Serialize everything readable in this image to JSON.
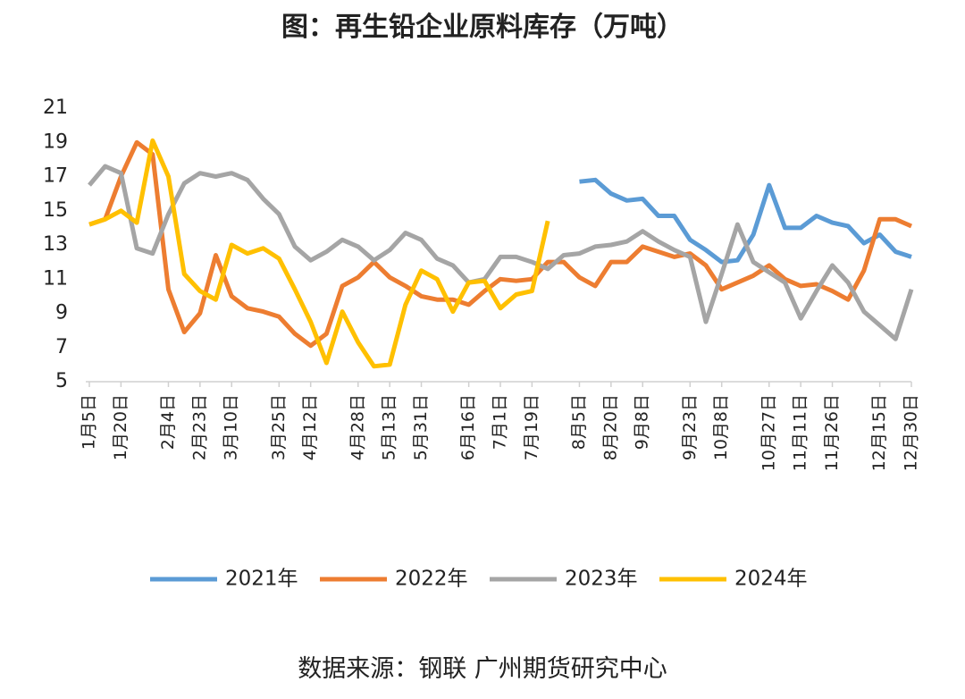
{
  "chart_data": {
    "type": "line",
    "title": "图：再生铅企业原料库存（万吨）",
    "source": "数据来源：钢联 广州期货研究中心",
    "categories": [
      "1月5日",
      null,
      "1月20日",
      null,
      null,
      "2月4日",
      null,
      "2月23日",
      null,
      "3月10日",
      null,
      null,
      "3月25日",
      null,
      "4月12日",
      null,
      null,
      "4月28日",
      null,
      "5月13日",
      null,
      "5月31日",
      null,
      null,
      "6月16日",
      null,
      "7月1日",
      null,
      "7月19日",
      null,
      null,
      "8月5日",
      null,
      "8月20日",
      null,
      "9月8日",
      null,
      null,
      "9月23日",
      null,
      "10月8日",
      null,
      null,
      "10月27日",
      null,
      "11月11日",
      null,
      "11月26日",
      null,
      null,
      "12月15日",
      null,
      "12月30日"
    ],
    "ylim": [
      5,
      21
    ],
    "yticks": [
      5,
      7,
      9,
      11,
      13,
      15,
      17,
      19,
      21
    ],
    "legend": "bottom",
    "series": [
      {
        "name": "2021年",
        "color": "#5b9bd5",
        "values": [
          null,
          null,
          null,
          null,
          null,
          null,
          null,
          null,
          null,
          null,
          null,
          null,
          null,
          null,
          null,
          null,
          null,
          null,
          null,
          null,
          null,
          null,
          null,
          null,
          null,
          null,
          null,
          null,
          null,
          null,
          null,
          16.7,
          16.8,
          16.0,
          15.6,
          15.7,
          14.7,
          14.7,
          13.3,
          12.7,
          12.0,
          12.1,
          13.6,
          16.5,
          14.0,
          14.0,
          14.7,
          14.3,
          14.1,
          13.1,
          13.6,
          12.6,
          12.3
        ]
      },
      {
        "name": "2022年",
        "color": "#ed7d31",
        "values": [
          14.2,
          14.5,
          17.0,
          19.0,
          18.3,
          10.4,
          7.9,
          9.0,
          12.4,
          10.0,
          9.3,
          9.1,
          8.8,
          7.8,
          7.1,
          7.8,
          10.6,
          11.1,
          12.0,
          11.1,
          10.6,
          10.0,
          9.8,
          9.8,
          9.5,
          10.3,
          11.0,
          10.9,
          11.0,
          12.0,
          12.0,
          11.1,
          10.6,
          12.0,
          12.0,
          12.9,
          12.6,
          12.3,
          12.5,
          11.8,
          10.4,
          10.8,
          11.2,
          11.8,
          11.0,
          10.6,
          10.7,
          10.3,
          9.8,
          11.5,
          14.5,
          14.5,
          14.1
        ]
      },
      {
        "name": "2023年",
        "color": "#a5a5a5",
        "values": [
          16.5,
          17.6,
          17.2,
          12.8,
          12.5,
          14.8,
          16.6,
          17.2,
          17.0,
          17.2,
          16.8,
          15.7,
          14.8,
          12.9,
          12.1,
          12.6,
          13.3,
          12.9,
          12.1,
          12.7,
          13.7,
          13.3,
          12.2,
          11.8,
          10.8,
          11.0,
          12.3,
          12.3,
          12.0,
          11.6,
          12.4,
          12.5,
          12.9,
          13.0,
          13.2,
          13.8,
          13.2,
          12.7,
          12.3,
          8.5,
          11.3,
          14.2,
          12.0,
          11.4,
          10.8,
          8.7,
          10.3,
          11.8,
          10.8,
          9.1,
          8.3,
          7.5,
          10.4
        ]
      },
      {
        "name": "2024年",
        "color": "#ffc000",
        "values": [
          14.2,
          14.5,
          15.0,
          14.3,
          19.1,
          17.0,
          11.3,
          10.3,
          9.8,
          13.0,
          12.5,
          12.8,
          12.2,
          10.4,
          8.5,
          6.1,
          9.1,
          7.3,
          5.9,
          6.0,
          9.5,
          11.5,
          11.0,
          9.1,
          10.8,
          10.9,
          9.3,
          10.1,
          10.3,
          14.4,
          null,
          null,
          null,
          null,
          null,
          null,
          null,
          null,
          null,
          null,
          null,
          null,
          null,
          null,
          null,
          null,
          null,
          null,
          null,
          null,
          null,
          null,
          null
        ]
      }
    ]
  }
}
